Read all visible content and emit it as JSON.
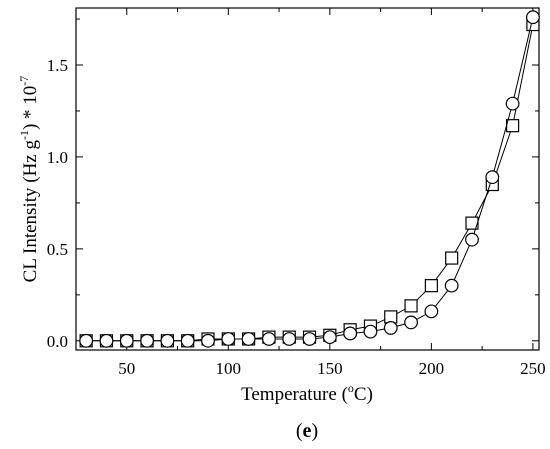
{
  "chart_data": {
    "type": "line",
    "xlabel": {
      "prefix": "Temperature (",
      "sup": "o",
      "suffix": "C)"
    },
    "ylabel": {
      "prefix": "CL Intensity (Hz g",
      "sup1": "-1",
      "middle": ") * 10",
      "sup2": "-7"
    },
    "panel_label": {
      "open": "(",
      "letter": "e",
      "close": ")"
    },
    "xlim": [
      25,
      253
    ],
    "ylim": [
      -0.05,
      1.81
    ],
    "xticks": [
      50,
      100,
      150,
      200,
      250
    ],
    "yticks": [
      0.0,
      0.5,
      1.0,
      1.5
    ],
    "xtick_labels": [
      "50",
      "100",
      "150",
      "200",
      "250"
    ],
    "ytick_labels": [
      "0.0",
      "0.5",
      "1.0",
      "1.5"
    ],
    "grid": false,
    "series": [
      {
        "marker": "square",
        "x": [
          30,
          40,
          50,
          60,
          70,
          80,
          90,
          100,
          110,
          120,
          130,
          140,
          150,
          160,
          170,
          180,
          190,
          200,
          210,
          220,
          230,
          240,
          250
        ],
        "y": [
          0.0,
          0.0,
          0.0,
          0.0,
          0.0,
          0.0,
          0.01,
          0.01,
          0.01,
          0.02,
          0.02,
          0.02,
          0.03,
          0.06,
          0.08,
          0.13,
          0.19,
          0.3,
          0.45,
          0.64,
          0.85,
          1.17,
          1.72
        ]
      },
      {
        "marker": "circle",
        "x": [
          30,
          40,
          50,
          60,
          70,
          80,
          90,
          100,
          110,
          120,
          130,
          140,
          150,
          160,
          170,
          180,
          190,
          200,
          210,
          220,
          230,
          240,
          250
        ],
        "y": [
          0.0,
          0.0,
          0.0,
          0.0,
          0.0,
          0.0,
          0.0,
          0.01,
          0.01,
          0.01,
          0.01,
          0.01,
          0.02,
          0.04,
          0.05,
          0.07,
          0.1,
          0.16,
          0.3,
          0.55,
          0.89,
          1.29,
          1.76
        ]
      }
    ]
  }
}
